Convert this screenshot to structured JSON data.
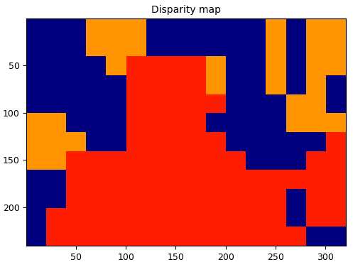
{
  "chart_data": {
    "type": "heatmap",
    "title": "Disparity map",
    "xlim": [
      0.5,
      320.5
    ],
    "ylim": [
      240.5,
      0.5
    ],
    "xticks": [
      50,
      100,
      150,
      200,
      250,
      300
    ],
    "yticks": [
      50,
      100,
      150,
      200
    ],
    "color_range": [
      0,
      16
    ],
    "cells": [
      [
        0,
        0,
        0,
        12,
        12,
        12,
        0,
        0,
        0,
        0,
        0,
        0,
        12,
        0,
        12,
        12
      ],
      [
        0,
        0,
        0,
        12,
        12,
        12,
        0,
        0,
        0,
        0,
        0,
        0,
        12,
        0,
        12,
        12
      ],
      [
        0,
        0,
        0,
        0,
        12,
        14,
        14,
        14,
        14,
        12,
        0,
        0,
        12,
        0,
        12,
        12
      ],
      [
        0,
        0,
        0,
        0,
        0,
        14,
        14,
        14,
        14,
        12,
        0,
        0,
        12,
        0,
        12,
        0
      ],
      [
        0,
        0,
        0,
        0,
        0,
        14,
        14,
        14,
        14,
        14,
        0,
        0,
        0,
        12,
        12,
        0
      ],
      [
        12,
        12,
        0,
        0,
        0,
        14,
        14,
        14,
        14,
        0,
        0,
        0,
        0,
        12,
        12,
        12
      ],
      [
        12,
        12,
        12,
        0,
        0,
        14,
        14,
        14,
        14,
        14,
        0,
        0,
        0,
        0,
        0,
        14
      ],
      [
        12,
        12,
        14,
        14,
        14,
        14,
        14,
        14,
        14,
        14,
        14,
        0,
        0,
        0,
        14,
        14
      ],
      [
        0,
        0,
        14,
        14,
        14,
        14,
        14,
        14,
        14,
        14,
        14,
        14,
        14,
        14,
        14,
        14
      ],
      [
        0,
        0,
        14,
        14,
        14,
        14,
        14,
        14,
        14,
        14,
        14,
        14,
        14,
        0,
        14,
        14
      ],
      [
        0,
        14,
        14,
        14,
        14,
        14,
        14,
        14,
        14,
        14,
        14,
        14,
        14,
        0,
        14,
        14
      ],
      [
        0,
        14,
        14,
        14,
        14,
        14,
        14,
        14,
        14,
        14,
        14,
        14,
        14,
        14,
        0,
        0
      ]
    ]
  }
}
